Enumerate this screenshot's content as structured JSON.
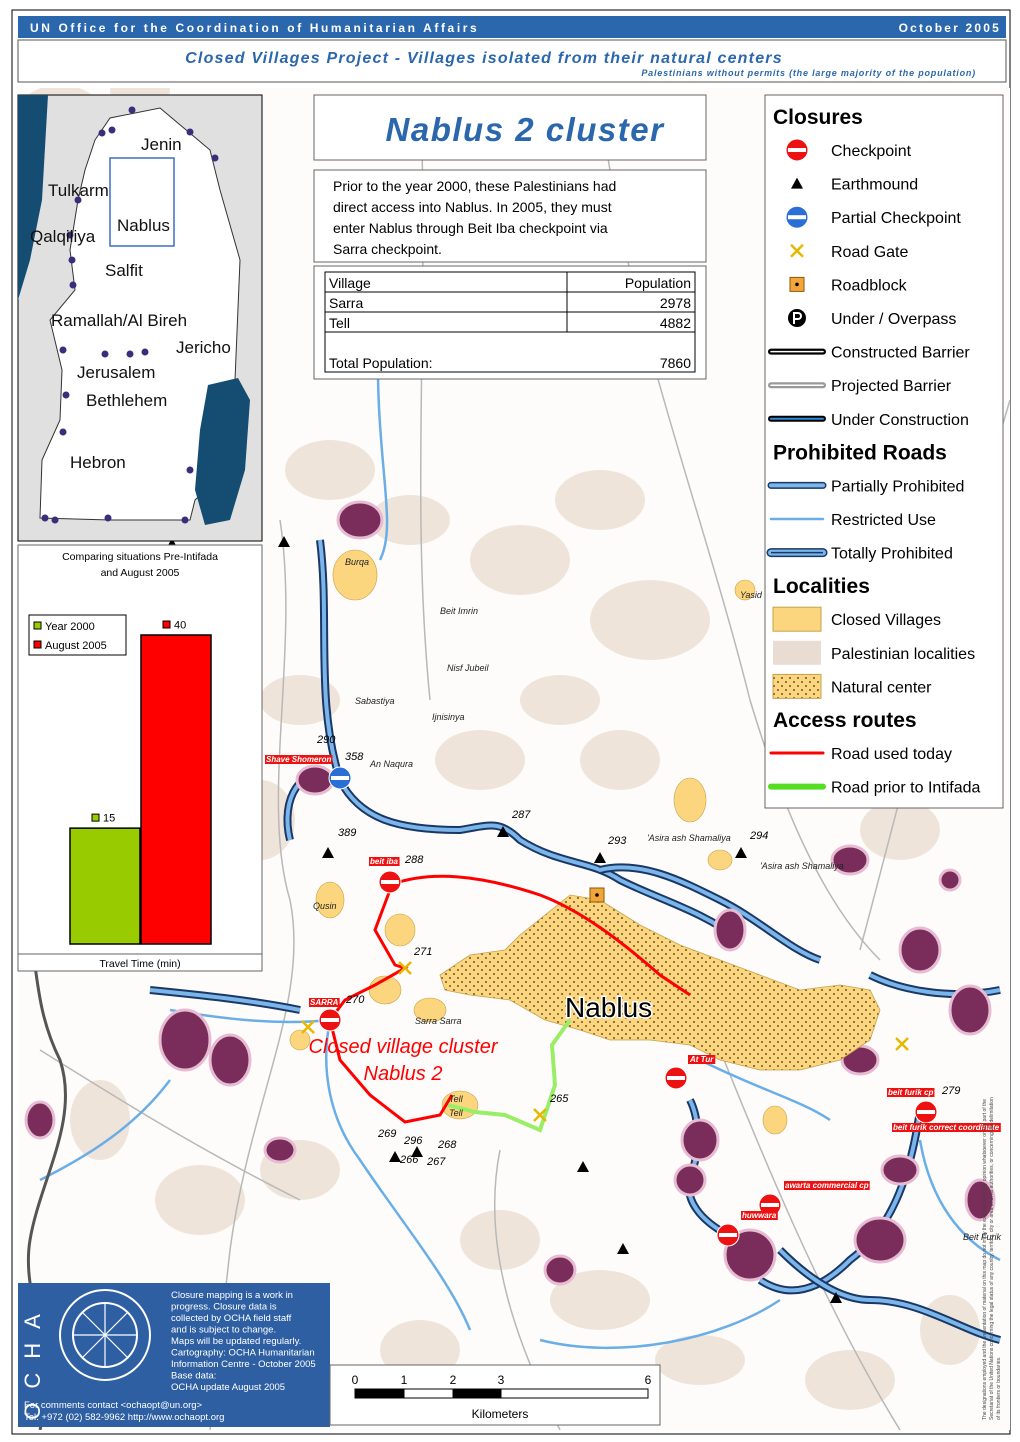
{
  "header": {
    "organization": "UN Office for the Coordination of Humanitarian Affairs",
    "date": "October 2005",
    "title": "Closed Villages Project - Villages isolated from their natural centers",
    "subtitle": "Palestinians without permits (the large majority of the population)"
  },
  "inset_map": {
    "labels": [
      "Jenin",
      "Tulkarm",
      "Nablus",
      "Qalqiliya",
      "Salfit",
      "Ramallah/Al Bireh",
      "Jericho",
      "Jerusalem",
      "Bethlehem",
      "Hebron"
    ]
  },
  "cluster": {
    "title": "Nablus 2 cluster",
    "description": [
      "Prior to the year 2000, these Palestinians had",
      "direct access into Nablus. In 2005, they must",
      "enter Nablus through Beit Iba checkpoint via",
      "Sarra checkpoint."
    ],
    "table": {
      "headers": [
        "Village",
        "Population"
      ],
      "rows": [
        [
          "Sarra",
          2978
        ],
        [
          "Tell",
          4882
        ]
      ],
      "total_label": "Total Population:",
      "total": 7860
    }
  },
  "legend": {
    "sections": [
      {
        "title": "Closures",
        "items": [
          "Checkpoint",
          "Earthmound",
          "Partial Checkpoint",
          "Road Gate",
          "Roadblock",
          "Under / Overpass",
          "Constructed Barrier",
          "Projected Barrier",
          "Under Construction"
        ]
      },
      {
        "title": "Prohibited Roads",
        "items": [
          "Partially Prohibited",
          "Restricted Use",
          "Totally Prohibited"
        ]
      },
      {
        "title": "Localities",
        "items": [
          "Closed Villages",
          "Palestinian localities",
          "Natural center"
        ]
      },
      {
        "title": "Access routes",
        "items": [
          "Road used today",
          "Road prior to Intifada"
        ]
      }
    ]
  },
  "travel_chart": {
    "title": [
      "Comparing situations Pre-Intifada",
      "and August 2005"
    ],
    "x_label": "Travel Time (min)",
    "series": [
      {
        "name": "Year 2000",
        "color": "#99cc00",
        "value": 15
      },
      {
        "name": "August 2005",
        "color": "#ff0000",
        "value": 40
      }
    ]
  },
  "map_labels": [
    "Burqa",
    "Yasid",
    "Beit Imrin",
    "Nisf Jubeil",
    "Sabastiya",
    "Ijnisinya",
    "Shave Shomeron",
    "An Naqura",
    "'Asira ash Shamaliya",
    "'Asira ash Shamaliya",
    "beit iba",
    "Qusin",
    "Sarra Sarra",
    "SARRA",
    "Nablus",
    "Closed village cluster",
    "Nablus 2",
    "At Tur",
    "Tell",
    "Tell",
    "beit furik cp",
    "beit furik correct coordinate",
    "awarta commercial cp",
    "huwwara",
    "Beit Furik"
  ],
  "closure_ids": [
    "290",
    "358",
    "287",
    "389",
    "293",
    "294",
    "288",
    "271",
    "270",
    "265",
    "269",
    "296",
    "268",
    "266",
    "267",
    "279"
  ],
  "footer": {
    "notes": [
      "Closure mapping is a work in",
      "progress. Closure data is",
      "collected by OCHA field staff",
      "and is subject to change.",
      "Maps will be updated regularly.",
      "Cartography: OCHA Humanitarian",
      "Information Centre - October 2005",
      "Base data:",
      "OCHA update August 2005"
    ],
    "contact": [
      "For comments contact <ochaopt@un.org>",
      "Tel. +972 (02) 582-9962 http://www.ochaopt.org"
    ],
    "logo_text": "OCHA",
    "disclaimer": [
      "The designations employed and the presentation of material on this map do not imply the expression of any opinion whatsoever on the part of the",
      "Secretariat of the United Nations concerning the legal status of any country, territory, city or area or of its authorities, or concerning the delimitation",
      "of its frontiers or boundaries."
    ]
  },
  "scale_bar": {
    "labels": [
      "0",
      "1",
      "2",
      "3",
      "6"
    ],
    "unit": "Kilometers"
  }
}
